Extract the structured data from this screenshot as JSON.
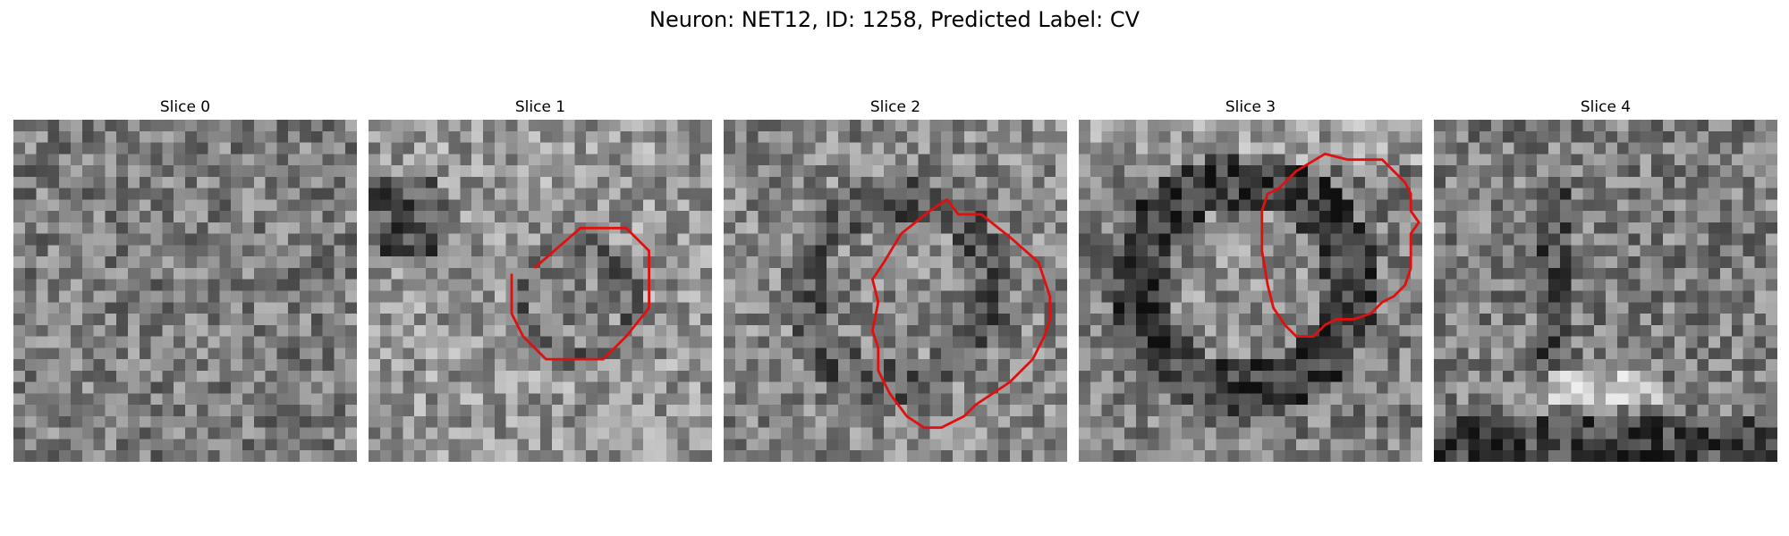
{
  "figure": {
    "title": "Neuron: NET12, ID: 1258, Predicted Label: CV"
  },
  "slices": [
    {
      "label": "Slice 0",
      "seed": 11,
      "has_contour": false,
      "lesion": null,
      "dark_patch": null,
      "ring": null
    },
    {
      "label": "Slice 1",
      "seed": 23,
      "has_contour": true,
      "lesion": "blob",
      "dark_patch": "upper-left",
      "ring": null
    },
    {
      "label": "Slice 2",
      "seed": 37,
      "has_contour": true,
      "lesion": "ring",
      "dark_patch": null,
      "ring": "dark"
    },
    {
      "label": "Slice 3",
      "seed": 51,
      "has_contour": true,
      "lesion": "ring",
      "dark_patch": null,
      "ring": "dark-thick"
    },
    {
      "label": "Slice 4",
      "seed": 67,
      "has_contour": false,
      "lesion": "dark-band",
      "dark_patch": null,
      "ring": null
    }
  ],
  "style": {
    "contour_color": "#e01010",
    "background": "#ffffff"
  }
}
